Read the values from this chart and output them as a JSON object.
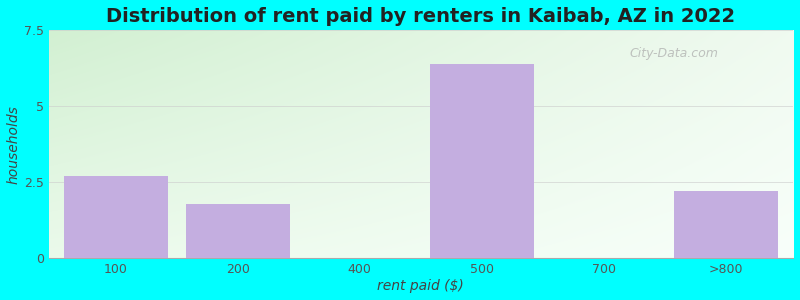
{
  "title": "Distribution of rent paid by renters in Kaibab, AZ in 2022",
  "categories": [
    "100",
    "200",
    "400",
    "500",
    "700",
    ">800"
  ],
  "values": [
    2.7,
    1.8,
    0,
    6.4,
    0,
    2.2
  ],
  "bar_color": "#C4AEE0",
  "ylabel": "households",
  "xlabel": "rent paid ($)",
  "ylim": [
    0,
    7.5
  ],
  "yticks": [
    0,
    2.5,
    5,
    7.5
  ],
  "outer_bg": "#00FFFF",
  "title_fontsize": 14,
  "axis_label_fontsize": 10,
  "watermark": "City-Data.com",
  "gradient_topleft": [
    210,
    240,
    210
  ],
  "gradient_topright": [
    240,
    250,
    240
  ],
  "gradient_bottomleft": [
    235,
    250,
    235
  ],
  "gradient_bottomright": [
    248,
    255,
    250
  ]
}
